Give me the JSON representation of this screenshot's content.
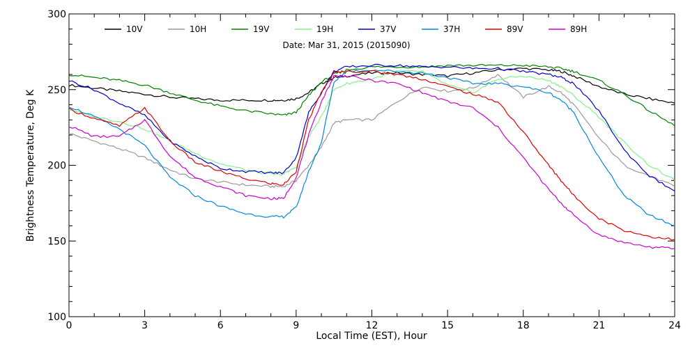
{
  "chart_data": {
    "type": "line",
    "annotation": "Date: Mar 31, 2015 (2015090)",
    "xlabel": "Local Time (EST), Hour",
    "ylabel": "Brightness Temperature, Deg K",
    "xlim": [
      0,
      24
    ],
    "ylim": [
      100,
      300
    ],
    "xticks": [
      0,
      3,
      6,
      9,
      12,
      15,
      18,
      21,
      24
    ],
    "yticks": [
      100,
      150,
      200,
      250,
      300
    ],
    "xtick_labels": [
      "0",
      "3",
      "6",
      "9",
      "12",
      "15",
      "18",
      "21",
      "24"
    ],
    "ytick_labels": [
      "100",
      "150",
      "200",
      "250",
      "300"
    ],
    "x": [
      0,
      1,
      2,
      3,
      4,
      5,
      6,
      7,
      8,
      8.5,
      9,
      9.5,
      10,
      10.5,
      11,
      12,
      13,
      14,
      15,
      16,
      17,
      18,
      19,
      19.5,
      20,
      21,
      22,
      23,
      24
    ],
    "series": [
      {
        "name": "10V",
        "color": "#000000",
        "values": [
          253,
          251,
          249,
          247,
          245,
          244,
          243,
          243,
          243,
          243,
          244,
          248,
          254,
          258,
          259,
          261,
          261,
          260,
          259,
          261,
          263,
          264,
          263,
          262,
          259,
          252,
          247,
          244,
          241
        ]
      },
      {
        "name": "10H",
        "color": "#999999",
        "values": [
          221,
          216,
          211,
          205,
          197,
          191,
          189,
          187,
          186,
          186,
          190,
          200,
          212,
          228,
          230,
          230,
          242,
          252,
          249,
          251,
          260,
          245,
          252,
          248,
          240,
          218,
          200,
          193,
          186
        ]
      },
      {
        "name": "19V",
        "color": "#008000",
        "values": [
          260,
          258,
          256,
          253,
          248,
          243,
          239,
          236,
          234,
          233,
          235,
          246,
          255,
          260,
          263,
          265,
          265,
          265,
          266,
          266,
          266,
          266,
          265,
          264,
          262,
          256,
          247,
          236,
          226
        ]
      },
      {
        "name": "19H",
        "color": "#88ee88",
        "values": [
          237,
          232,
          229,
          224,
          216,
          208,
          201,
          197,
          194,
          194,
          199,
          219,
          232,
          250,
          254,
          257,
          262,
          262,
          253,
          248,
          257,
          259,
          256,
          252,
          246,
          232,
          215,
          200,
          190
        ]
      },
      {
        "name": "37V",
        "color": "#0000cc",
        "values": [
          256,
          250,
          241,
          233,
          216,
          206,
          198,
          196,
          195,
          195,
          205,
          235,
          248,
          262,
          265,
          266,
          266,
          265,
          265,
          264,
          264,
          262,
          260,
          258,
          254,
          236,
          210,
          193,
          183
        ]
      },
      {
        "name": "37H",
        "color": "#0088dd",
        "values": [
          239,
          232,
          224,
          213,
          192,
          180,
          173,
          168,
          166,
          166,
          172,
          196,
          215,
          255,
          262,
          263,
          262,
          261,
          258,
          254,
          254,
          252,
          248,
          243,
          235,
          205,
          180,
          167,
          160
        ]
      },
      {
        "name": "89V",
        "color": "#dd0000",
        "values": [
          237,
          231,
          226,
          238,
          216,
          202,
          196,
          191,
          188,
          187,
          196,
          230,
          248,
          261,
          262,
          262,
          260,
          257,
          252,
          247,
          242,
          222,
          200,
          190,
          180,
          165,
          157,
          153,
          151
        ]
      },
      {
        "name": "89H",
        "color": "#cc00cc",
        "values": [
          226,
          219,
          219,
          230,
          206,
          192,
          186,
          180,
          178,
          178,
          192,
          220,
          242,
          259,
          259,
          256,
          254,
          248,
          242,
          238,
          225,
          205,
          184,
          175,
          167,
          154,
          149,
          146,
          145
        ]
      }
    ]
  }
}
